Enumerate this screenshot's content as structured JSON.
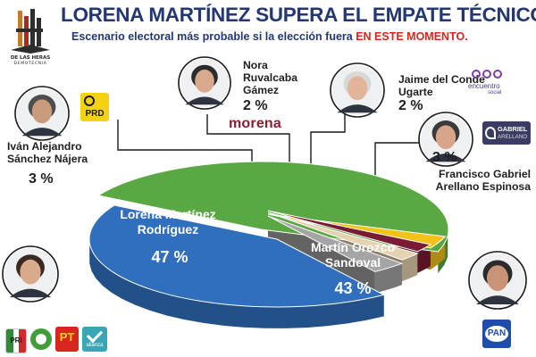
{
  "header": {
    "logo_text": "DE LAS HERAS",
    "logo_sub": "DEMOTECNIA",
    "title": "LORENA MARTÍNEZ SUPERA EL EMPATE TÉCNICO",
    "subtitle_main": "Escenario electoral más probable si la elección fuera",
    "subtitle_highlight": "EN ESTE MOMENTO."
  },
  "party_badges": {
    "prd": "PRD",
    "morena": "morena",
    "encuentro": "encuentro",
    "encuentro_sub": "social",
    "gabriel_1": "GABRIEL",
    "gabriel_2": "ARELLANO",
    "pan": "PAN",
    "pri": "PRI",
    "pt": "PT",
    "nueva_alianza": "alianza"
  },
  "colors": {
    "title": "#233774",
    "highlight": "#d8261e",
    "green": "#5aa843",
    "blue": "#2f6fbe",
    "yellow": "#f2c21a",
    "maroon": "#7a1b36",
    "beige": "#e6d2b0",
    "gray": "#a5a5a5"
  },
  "chart_data": {
    "type": "pie",
    "title": "LORENA MARTÍNEZ SUPERA EL EMPATE TÉCNICO",
    "subtitle": "Escenario electoral más probable si la elección fuera EN ESTE MOMENTO.",
    "slices": [
      {
        "name": "Lorena Martínez Rodríguez",
        "value": 47,
        "label": "47 %",
        "color": "#5aa843"
      },
      {
        "name": "Iván Alejandro Sánchez Nájera",
        "value": 3,
        "label": "3 %",
        "color": "#f2c21a"
      },
      {
        "name": "Nora Ruvalcaba Gámez",
        "value": 2,
        "label": "2 %",
        "color": "#7a1b36"
      },
      {
        "name": "Jaime del Conde Ugarte",
        "value": 2,
        "label": "2 %",
        "color": "#e6d2b0"
      },
      {
        "name": "Francisco Gabriel Arellano Espinosa",
        "value": 3,
        "label": "3 %",
        "color": "#a5a5a5"
      },
      {
        "name": "Martín Orozco Sandoval",
        "value": 43,
        "label": "43 %",
        "color": "#2f6fbe"
      }
    ],
    "labels": {
      "lorena": {
        "name": "Lorena Martínez\nRodríguez",
        "pct": "47 %"
      },
      "martin": {
        "name": "Martín Orozco\nSandoval",
        "pct": "43 %"
      },
      "ivan": {
        "name": "Iván Alejandro\nSánchez Nájera",
        "pct": "3 %"
      },
      "nora": {
        "name": "Nora\nRuvalcaba\nGámez",
        "pct": "2 %"
      },
      "jaime": {
        "name": "Jaime del Conde\nUgarte",
        "pct": "2 %"
      },
      "francisco": {
        "name": "Francisco Gabriel\nArellano Espinosa",
        "pct": "3 %"
      }
    }
  }
}
